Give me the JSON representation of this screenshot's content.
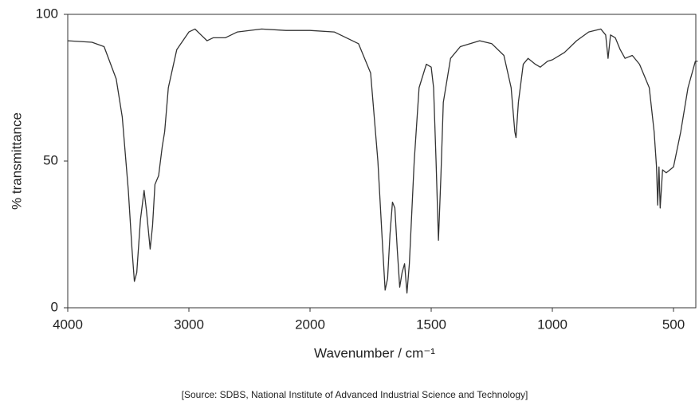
{
  "chart_data": {
    "type": "line",
    "ylabel": "% transmittance",
    "xlabel": "Wavenumber / cm⁻¹",
    "source": "[Source: SDBS, National Institute of Advanced Industrial Science and Technology]",
    "xlim": [
      4000,
      400
    ],
    "ylim": [
      0,
      100
    ],
    "xticks": [
      4000,
      3000,
      2000,
      1500,
      1000,
      500
    ],
    "yticks": [
      0,
      50,
      100
    ],
    "series": [
      {
        "color": "#333333",
        "x": [
          4000,
          3800,
          3700,
          3600,
          3550,
          3500,
          3470,
          3450,
          3430,
          3400,
          3370,
          3350,
          3320,
          3300,
          3280,
          3250,
          3220,
          3200,
          3170,
          3100,
          3000,
          2950,
          2900,
          2850,
          2800,
          2700,
          2600,
          2400,
          2200,
          2000,
          1900,
          1800,
          1750,
          1720,
          1700,
          1690,
          1680,
          1670,
          1660,
          1650,
          1640,
          1630,
          1620,
          1610,
          1600,
          1590,
          1570,
          1550,
          1520,
          1500,
          1490,
          1480,
          1470,
          1460,
          1450,
          1420,
          1380,
          1300,
          1250,
          1200,
          1170,
          1155,
          1150,
          1140,
          1120,
          1100,
          1070,
          1050,
          1020,
          1000,
          950,
          900,
          850,
          800,
          780,
          770,
          760,
          740,
          720,
          700,
          670,
          640,
          600,
          580,
          570,
          565,
          560,
          555,
          545,
          530,
          500,
          470,
          440,
          410,
          400
        ],
        "values": [
          91,
          90.5,
          89,
          78,
          65,
          40,
          20,
          9,
          12,
          30,
          40,
          33,
          20,
          28,
          42,
          45,
          55,
          60,
          75,
          88,
          94,
          95,
          93,
          91,
          92,
          92,
          94,
          95,
          94.5,
          94.5,
          94,
          90,
          80,
          50,
          20,
          6,
          10,
          25,
          36,
          34,
          20,
          7,
          12,
          15,
          5,
          15,
          50,
          75,
          83,
          82,
          75,
          50,
          23,
          45,
          70,
          85,
          89,
          91,
          90,
          86,
          75,
          60,
          58,
          70,
          83,
          85,
          83,
          82,
          84,
          84.5,
          87,
          91,
          94,
          95,
          93,
          85,
          93,
          92,
          88,
          85,
          86,
          83,
          75,
          60,
          48,
          35,
          48,
          34,
          47,
          46,
          48,
          60,
          75,
          84,
          84
        ]
      }
    ]
  }
}
